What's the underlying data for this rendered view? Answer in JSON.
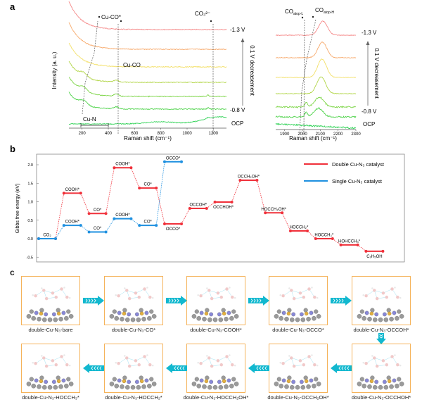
{
  "panel_labels": {
    "a": "a",
    "b": "b",
    "c": "c"
  },
  "panel_a": {
    "ylabel": "Intensity (a. u.)",
    "xlabel": "Raman shift (cm⁻¹)",
    "direction_label": "0.1 V decreasement",
    "potential_labels": {
      "top": "-1.3 V",
      "bottom": "-0.8 V",
      "ocp": "OCP"
    },
    "left_plot": {
      "xticks": [
        "200",
        "400",
        "600",
        "800",
        "1000",
        "1200"
      ],
      "annotations": {
        "cu_co_star": "Cu-CO*",
        "cu_co": "Cu-CO",
        "co3": "CO₃²⁻",
        "cu_n": "Cu-N"
      }
    },
    "right_plot": {
      "xticks": [
        "1900",
        "2000",
        "2100",
        "2200",
        "2300"
      ],
      "annotations": {
        "co_atop_l": "COatop-L",
        "co_atop_h": "COatop-H"
      }
    },
    "trace_colors": [
      "#f58a8a",
      "#f7a96b",
      "#f3e06a",
      "#b3d64a",
      "#7fd64a",
      "#52d44e",
      "#35d35a"
    ]
  },
  "chart_data": {
    "type": "line",
    "title": "",
    "xlabel": "",
    "ylabel": "Gibbs free energy (eV)",
    "ylim": [
      -0.5,
      2.2
    ],
    "yticks": [
      "-0.5",
      "0.0",
      "0.5",
      "1.0",
      "1.5",
      "2.0"
    ],
    "legend_position": "top-right",
    "series": [
      {
        "name": "Double Cu-N₃ catalyst",
        "color": "#f0303a",
        "steps": [
          0,
          1,
          2,
          3,
          4,
          5,
          6,
          7,
          8,
          9,
          10,
          11,
          12,
          13
        ],
        "values": [
          0.0,
          1.23,
          0.68,
          1.92,
          1.37,
          0.4,
          0.82,
          0.99,
          1.58,
          0.7,
          0.21,
          0.0,
          -0.17,
          -0.34
        ],
        "labels": [
          "CO₂",
          "COOH*",
          "CO*",
          "COOH*",
          "CO*",
          "OCCO*",
          "OCCOH*",
          "OCCHOH*",
          "OCCH₂OH*",
          "HOCCH₂OH*",
          "HOCCH₂*",
          "HOCCH₃*",
          "HOHCCH₃*",
          "C₂H₅OH"
        ]
      },
      {
        "name": "Single Cu-N₃ catalyst",
        "color": "#1e90e0",
        "steps": [
          0,
          1,
          2,
          3,
          4,
          5
        ],
        "values": [
          0.0,
          0.36,
          0.18,
          0.54,
          0.36,
          2.08
        ],
        "labels": [
          "",
          "COOH*",
          "CO*",
          "COOH*",
          "CO*",
          "OCCO*"
        ]
      }
    ]
  },
  "panel_c": {
    "row1": [
      "double-Cu-N₃-bare",
      "double-Cu-N₃-CO*",
      "double-Cu-N₃-COOH*",
      "double-Cu-N₃-OCCO*",
      "double-Cu-N₃-OCCOH*"
    ],
    "row2": [
      "double-Cu-N₃-HOCCH₃*",
      "double-Cu-N₃-HOCCH₂*",
      "double-Cu-N₃-HOCCH₂OH*",
      "double-Cu-N₃-OCCH₂OH*",
      "double-Cu-N₃-OCCHOH*"
    ],
    "arrow_color": "#12b8cf",
    "frame_color": "#f5b35a"
  }
}
